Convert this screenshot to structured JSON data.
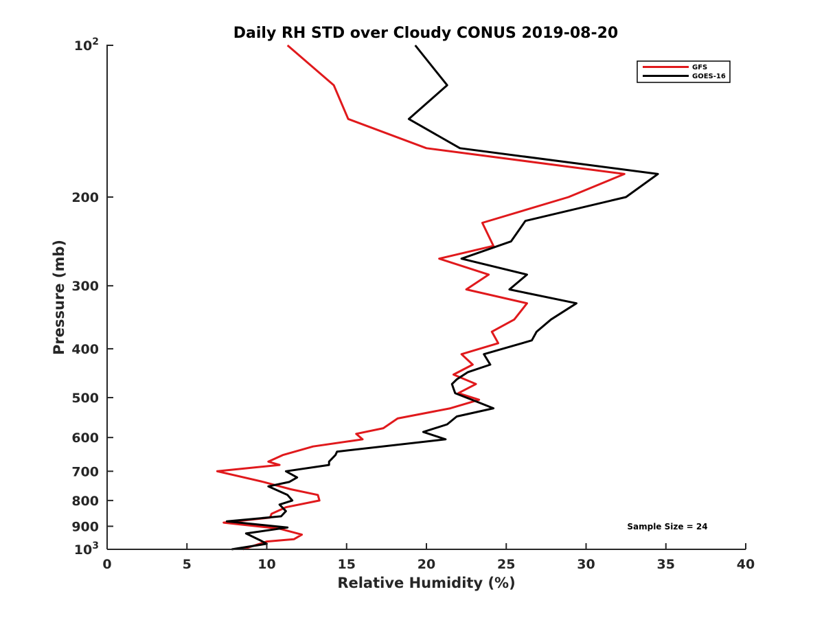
{
  "chart_data": {
    "type": "line",
    "title": "Daily RH STD over Cloudy CONUS 2019-08-20",
    "xlabel": "Relative Humidity (%)",
    "ylabel": "Pressure (mb)",
    "xlim": [
      0,
      40
    ],
    "ylim": [
      100,
      1000
    ],
    "yscale": "log",
    "y_reversed": true,
    "x_ticks": [
      0,
      5,
      10,
      15,
      20,
      25,
      30,
      35,
      40
    ],
    "x_tick_labels": [
      "0",
      "5",
      "10",
      "15",
      "20",
      "25",
      "30",
      "35",
      "40"
    ],
    "y_ticks": [
      100,
      200,
      300,
      400,
      500,
      600,
      700,
      800,
      900,
      1000
    ],
    "y_tick_labels": [
      {
        "base": "10",
        "exp": "2"
      },
      {
        "text": "200"
      },
      {
        "text": "300"
      },
      {
        "text": "400"
      },
      {
        "text": "500"
      },
      {
        "text": "600"
      },
      {
        "text": "700"
      },
      {
        "text": "800"
      },
      {
        "text": "900"
      },
      {
        "base": "10",
        "exp": "3"
      }
    ],
    "legend_position": "top-right",
    "annotation": "Sample Size = 24",
    "series": [
      {
        "name": "GFS",
        "color": "#e0191c",
        "points": [
          {
            "x": 11.3,
            "p": 100
          },
          {
            "x": 14.2,
            "p": 120
          },
          {
            "x": 15.1,
            "p": 140
          },
          {
            "x": 20.0,
            "p": 160
          },
          {
            "x": 32.4,
            "p": 180
          },
          {
            "x": 28.9,
            "p": 200
          },
          {
            "x": 23.5,
            "p": 225
          },
          {
            "x": 24.2,
            "p": 250
          },
          {
            "x": 20.8,
            "p": 265
          },
          {
            "x": 23.9,
            "p": 285
          },
          {
            "x": 22.5,
            "p": 305
          },
          {
            "x": 26.3,
            "p": 325
          },
          {
            "x": 25.5,
            "p": 350
          },
          {
            "x": 24.1,
            "p": 370
          },
          {
            "x": 24.5,
            "p": 390
          },
          {
            "x": 22.2,
            "p": 410
          },
          {
            "x": 22.9,
            "p": 430
          },
          {
            "x": 21.7,
            "p": 450
          },
          {
            "x": 23.1,
            "p": 470
          },
          {
            "x": 22.0,
            "p": 490
          },
          {
            "x": 23.3,
            "p": 505
          },
          {
            "x": 21.5,
            "p": 525
          },
          {
            "x": 18.2,
            "p": 550
          },
          {
            "x": 17.3,
            "p": 575
          },
          {
            "x": 15.6,
            "p": 590
          },
          {
            "x": 16.0,
            "p": 605
          },
          {
            "x": 12.9,
            "p": 625
          },
          {
            "x": 11.0,
            "p": 650
          },
          {
            "x": 10.1,
            "p": 670
          },
          {
            "x": 10.8,
            "p": 680
          },
          {
            "x": 6.9,
            "p": 700
          },
          {
            "x": 9.8,
            "p": 735
          },
          {
            "x": 11.5,
            "p": 760
          },
          {
            "x": 13.2,
            "p": 780
          },
          {
            "x": 13.3,
            "p": 800
          },
          {
            "x": 11.2,
            "p": 825
          },
          {
            "x": 10.3,
            "p": 850
          },
          {
            "x": 10.2,
            "p": 865
          },
          {
            "x": 7.3,
            "p": 885
          },
          {
            "x": 10.8,
            "p": 910
          },
          {
            "x": 12.2,
            "p": 935
          },
          {
            "x": 11.7,
            "p": 955
          },
          {
            "x": 10.0,
            "p": 965
          },
          {
            "x": 8.5,
            "p": 1000
          }
        ]
      },
      {
        "name": "GOES-16",
        "color": "#000000",
        "points": [
          {
            "x": 19.3,
            "p": 100
          },
          {
            "x": 21.3,
            "p": 120
          },
          {
            "x": 18.9,
            "p": 140
          },
          {
            "x": 22.1,
            "p": 160
          },
          {
            "x": 34.5,
            "p": 180
          },
          {
            "x": 32.5,
            "p": 200
          },
          {
            "x": 26.2,
            "p": 223
          },
          {
            "x": 25.3,
            "p": 245
          },
          {
            "x": 22.2,
            "p": 265
          },
          {
            "x": 26.3,
            "p": 285
          },
          {
            "x": 25.2,
            "p": 305
          },
          {
            "x": 29.4,
            "p": 325
          },
          {
            "x": 27.8,
            "p": 350
          },
          {
            "x": 26.9,
            "p": 370
          },
          {
            "x": 26.6,
            "p": 385
          },
          {
            "x": 23.6,
            "p": 410
          },
          {
            "x": 24.0,
            "p": 430
          },
          {
            "x": 22.6,
            "p": 445
          },
          {
            "x": 21.9,
            "p": 460
          },
          {
            "x": 21.6,
            "p": 470
          },
          {
            "x": 21.7,
            "p": 480
          },
          {
            "x": 21.8,
            "p": 490
          },
          {
            "x": 23.2,
            "p": 510
          },
          {
            "x": 24.2,
            "p": 525
          },
          {
            "x": 21.9,
            "p": 545
          },
          {
            "x": 21.3,
            "p": 565
          },
          {
            "x": 19.8,
            "p": 585
          },
          {
            "x": 21.2,
            "p": 605
          },
          {
            "x": 14.4,
            "p": 640
          },
          {
            "x": 14.3,
            "p": 650
          },
          {
            "x": 13.9,
            "p": 670
          },
          {
            "x": 13.9,
            "p": 680
          },
          {
            "x": 11.2,
            "p": 700
          },
          {
            "x": 11.9,
            "p": 720
          },
          {
            "x": 11.4,
            "p": 735
          },
          {
            "x": 10.1,
            "p": 750
          },
          {
            "x": 11.3,
            "p": 780
          },
          {
            "x": 11.6,
            "p": 800
          },
          {
            "x": 10.8,
            "p": 815
          },
          {
            "x": 11.2,
            "p": 840
          },
          {
            "x": 10.9,
            "p": 860
          },
          {
            "x": 7.5,
            "p": 880
          },
          {
            "x": 11.3,
            "p": 905
          },
          {
            "x": 8.7,
            "p": 930
          },
          {
            "x": 9.6,
            "p": 960
          },
          {
            "x": 10.0,
            "p": 975
          },
          {
            "x": 7.8,
            "p": 1000
          }
        ]
      }
    ]
  }
}
